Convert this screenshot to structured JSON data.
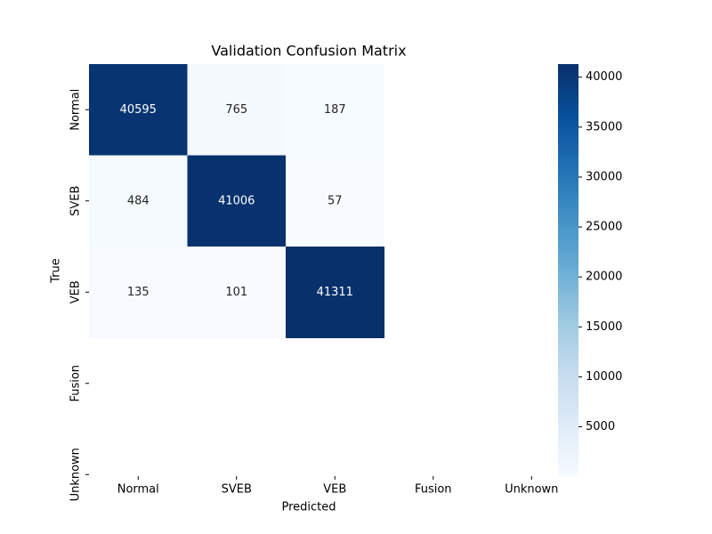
{
  "chart_data": {
    "type": "heatmap",
    "title": "Validation Confusion Matrix",
    "x_label": "Predicted",
    "y_label": "True",
    "x_categories": [
      "Normal",
      "SVEB",
      "VEB",
      "Fusion",
      "Unknown"
    ],
    "y_categories": [
      "Normal",
      "SVEB",
      "VEB",
      "Fusion",
      "Unknown"
    ],
    "values": [
      [
        40595,
        765,
        187,
        null,
        null
      ],
      [
        484,
        41006,
        57,
        null,
        null
      ],
      [
        135,
        101,
        41311,
        null,
        null
      ],
      [
        null,
        null,
        null,
        null,
        null
      ],
      [
        null,
        null,
        null,
        null,
        null
      ]
    ],
    "colorscale": [
      "#f7fbff",
      "#deebf7",
      "#c6dbef",
      "#9ecae1",
      "#6baed6",
      "#4292c6",
      "#2171b5",
      "#08519c",
      "#08306b"
    ],
    "clim": [
      57,
      41311
    ],
    "colorbar_ticks": [
      5000,
      10000,
      15000,
      20000,
      25000,
      30000,
      35000,
      40000
    ]
  }
}
